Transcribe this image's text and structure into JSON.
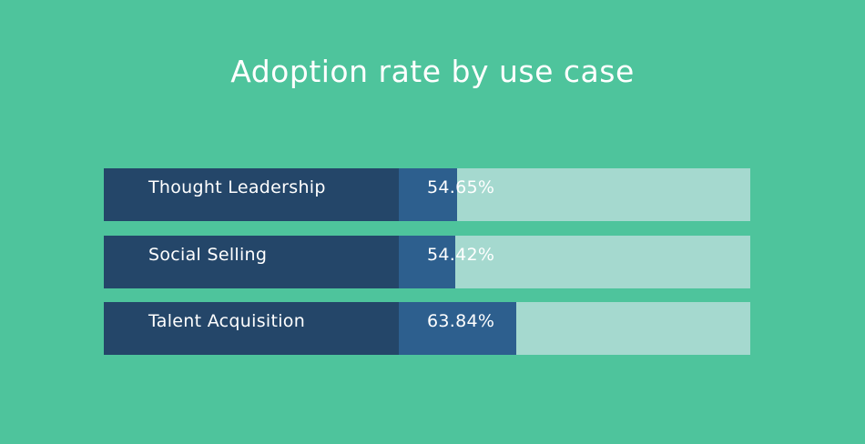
{
  "colors": {
    "background": "#4ec49c",
    "label_cell": "#244669",
    "bar_fill": "#2d5f8e",
    "bar_track": "#a5d9cf",
    "text": "#ffffff"
  },
  "chart_data": {
    "type": "bar",
    "orientation": "horizontal",
    "title": "Adoption rate by use case",
    "categories": [
      "Thought Leadership",
      "Social Selling",
      "Talent Acquisition"
    ],
    "values": [
      54.65,
      54.42,
      63.84
    ],
    "value_labels": [
      "54.65%",
      "54.42%",
      "63.84%"
    ],
    "unit": "%",
    "xlim": [
      0,
      100
    ],
    "grid": false,
    "legend": "none"
  }
}
